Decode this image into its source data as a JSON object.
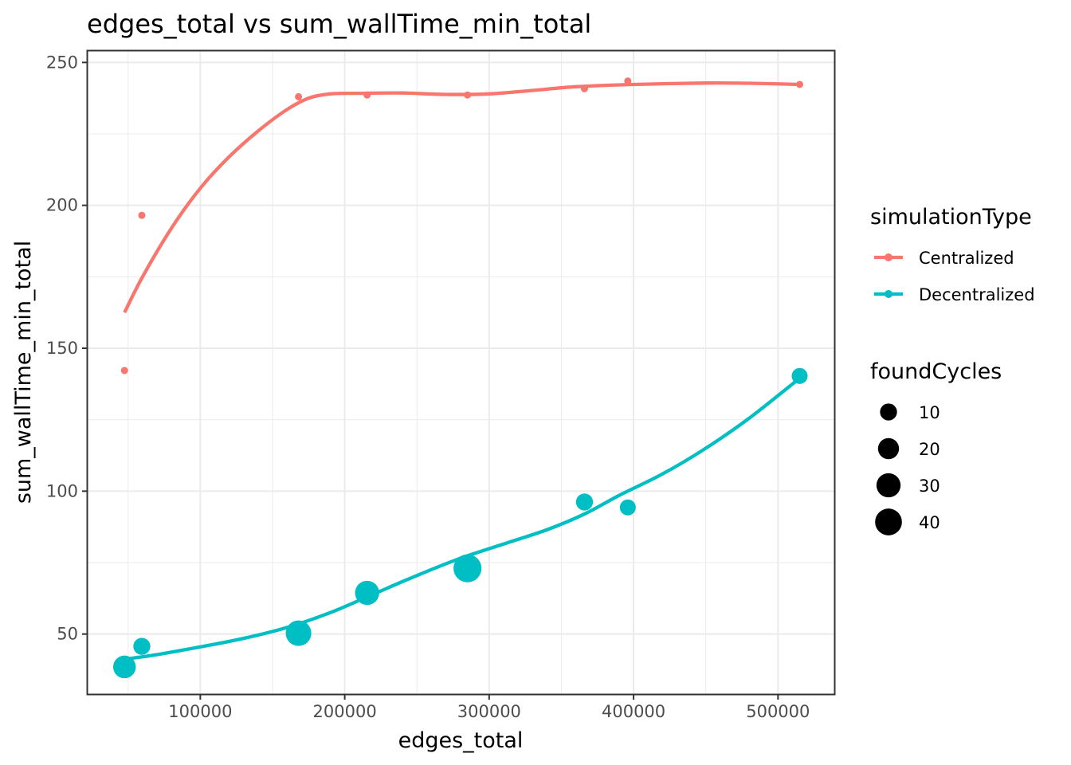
{
  "chart_data": {
    "type": "scatter",
    "title": "edges_total  vs  sum_wallTime_min_total",
    "xlabel": "edges_total",
    "ylabel": "sum_wallTime_min_total",
    "xlim": [
      22000,
      539000
    ],
    "ylim": [
      29,
      254
    ],
    "x_ticks": [
      100000,
      200000,
      300000,
      400000,
      500000
    ],
    "x_tick_labels": [
      "100000",
      "200000",
      "300000",
      "400000",
      "500000"
    ],
    "y_ticks": [
      50,
      100,
      150,
      200,
      250
    ],
    "y_tick_labels": [
      "50",
      "100",
      "150",
      "200",
      "250"
    ],
    "grid": true,
    "smooth_lines": true,
    "series": [
      {
        "name": "Centralized",
        "color": "#F8766D",
        "points": [
          {
            "x": 47500,
            "y": 142.2,
            "foundCycles": 0
          },
          {
            "x": 59500,
            "y": 196.5,
            "foundCycles": 0
          },
          {
            "x": 168000,
            "y": 238.0,
            "foundCycles": 0
          },
          {
            "x": 215500,
            "y": 238.6,
            "foundCycles": 0
          },
          {
            "x": 285000,
            "y": 238.6,
            "foundCycles": 0
          },
          {
            "x": 366000,
            "y": 240.8,
            "foundCycles": 0
          },
          {
            "x": 396000,
            "y": 243.5,
            "foundCycles": 0
          },
          {
            "x": 515000,
            "y": 242.3,
            "foundCycles": 0
          }
        ],
        "smooth": [
          [
            47500,
            162.5
          ],
          [
            60000,
            175
          ],
          [
            80000,
            192
          ],
          [
            100000,
            206
          ],
          [
            120000,
            217
          ],
          [
            140000,
            226
          ],
          [
            160000,
            233.5
          ],
          [
            175000,
            237.5
          ],
          [
            190000,
            239
          ],
          [
            210000,
            239.2
          ],
          [
            240000,
            239.3
          ],
          [
            270000,
            238.8
          ],
          [
            300000,
            239
          ],
          [
            330000,
            240.2
          ],
          [
            360000,
            241.5
          ],
          [
            400000,
            242.3
          ],
          [
            450000,
            242.8
          ],
          [
            480000,
            242.7
          ],
          [
            515000,
            242.3
          ]
        ]
      },
      {
        "name": "Decentralized",
        "color": "#00BFC4",
        "points": [
          {
            "x": 47500,
            "y": 38.5,
            "foundCycles": 25
          },
          {
            "x": 59500,
            "y": 45.7,
            "foundCycles": 10
          },
          {
            "x": 168000,
            "y": 50.3,
            "foundCycles": 35
          },
          {
            "x": 215500,
            "y": 64.4,
            "foundCycles": 30
          },
          {
            "x": 285000,
            "y": 73.0,
            "foundCycles": 45
          },
          {
            "x": 366000,
            "y": 96.2,
            "foundCycles": 10
          },
          {
            "x": 396000,
            "y": 94.3,
            "foundCycles": 8
          },
          {
            "x": 515000,
            "y": 140.3,
            "foundCycles": 8
          }
        ],
        "smooth": [
          [
            47500,
            41.2
          ],
          [
            70000,
            42.8
          ],
          [
            100000,
            45.5
          ],
          [
            130000,
            48.5
          ],
          [
            160000,
            52.3
          ],
          [
            190000,
            57.5
          ],
          [
            220000,
            64
          ],
          [
            250000,
            70.5
          ],
          [
            280000,
            76.5
          ],
          [
            310000,
            81.5
          ],
          [
            340000,
            86.5
          ],
          [
            366000,
            92
          ],
          [
            390000,
            98.5
          ],
          [
            420000,
            106
          ],
          [
            450000,
            115
          ],
          [
            480000,
            125.5
          ],
          [
            515000,
            139.5
          ]
        ]
      }
    ],
    "legend": {
      "position": "right",
      "color_title": "simulationType",
      "color_items": [
        {
          "label": "Centralized",
          "color": "#F8766D"
        },
        {
          "label": "Decentralized",
          "color": "#00BFC4"
        }
      ],
      "size_title": "foundCycles",
      "size_items": [
        {
          "label": "10",
          "value": 10
        },
        {
          "label": "20",
          "value": 20
        },
        {
          "label": "30",
          "value": 30
        },
        {
          "label": "40",
          "value": 40
        }
      ]
    }
  }
}
